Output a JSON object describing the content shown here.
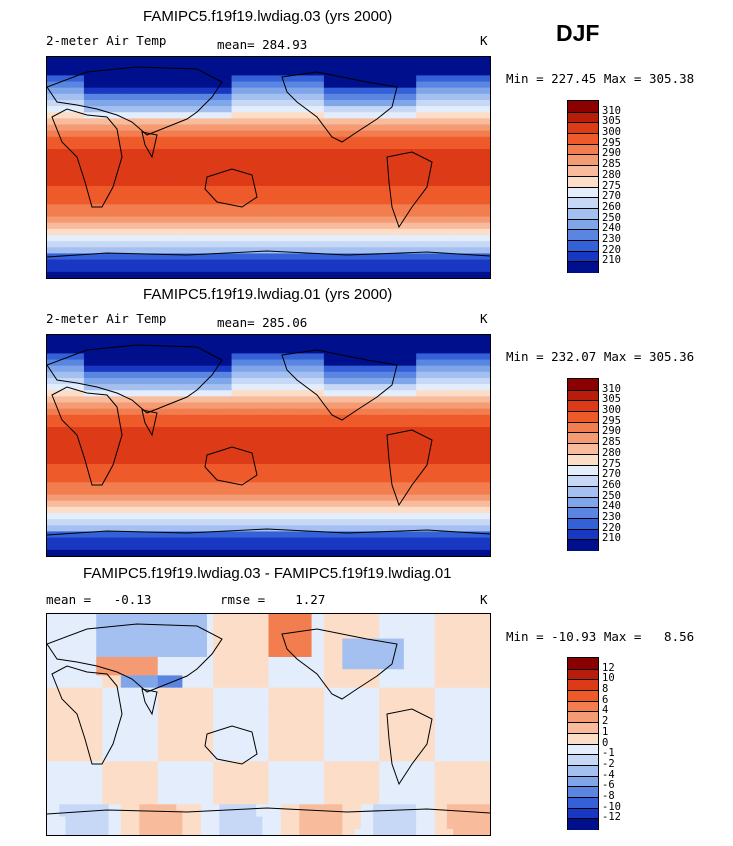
{
  "season": "DJF",
  "units": "K",
  "variable": "2-meter Air Temp",
  "panels": [
    {
      "title": "FAMIPC5.f19f19.lwdiag.03 (yrs 2000)",
      "left_label": "2-meter Air Temp",
      "stat_text": "mean= 284.93",
      "units": "K",
      "minmax": "Min = 227.45 Max = 305.38"
    },
    {
      "title": "FAMIPC5.f19f19.lwdiag.01 (yrs 2000)",
      "left_label": "2-meter Air Temp",
      "stat_text": "mean= 285.06",
      "units": "K",
      "minmax": "Min = 232.07 Max = 305.36"
    },
    {
      "title": "FAMIPC5.f19f19.lwdiag.03 - FAMIPC5.f19f19.lwdiag.01",
      "left_label": "mean =   -0.13",
      "stat_text": "rmse =    1.27",
      "units": "K",
      "minmax": "Min = -10.93 Max =   8.56"
    }
  ],
  "chart_data": [
    {
      "type": "heatmap",
      "title": "FAMIPC5.f19f19.lwdiag.03 (yrs 2000)",
      "variable": "2-meter Air Temp",
      "units": "K",
      "mean": 284.93,
      "min": 227.45,
      "max": 305.38,
      "projection": "global cylindrical equidistant, Pacific-centered",
      "colorbar_levels": [
        310,
        305,
        300,
        295,
        290,
        285,
        280,
        275,
        270,
        260,
        250,
        240,
        230,
        220,
        210
      ],
      "colorbar_colors": [
        "#8b0000",
        "#b81d0c",
        "#dd3a18",
        "#ef5a2a",
        "#f27d4e",
        "#f59b74",
        "#f8bc9c",
        "#fbddc8",
        "#e4edfb",
        "#c6d8f6",
        "#a4c0f0",
        "#80a6ea",
        "#5a86e2",
        "#3460d8",
        "#1838c4",
        "#00108c"
      ],
      "pattern": "warm tropics (~300 K), cold polar regions and high-latitude Northern Hemisphere continents"
    },
    {
      "type": "heatmap",
      "title": "FAMIPC5.f19f19.lwdiag.01 (yrs 2000)",
      "variable": "2-meter Air Temp",
      "units": "K",
      "mean": 285.06,
      "min": 232.07,
      "max": 305.36,
      "projection": "global cylindrical equidistant, Pacific-centered",
      "colorbar_levels": [
        310,
        305,
        300,
        295,
        290,
        285,
        280,
        275,
        270,
        260,
        250,
        240,
        230,
        220,
        210
      ],
      "colorbar_colors": [
        "#8b0000",
        "#b81d0c",
        "#dd3a18",
        "#ef5a2a",
        "#f27d4e",
        "#f59b74",
        "#f8bc9c",
        "#fbddc8",
        "#e4edfb",
        "#c6d8f6",
        "#a4c0f0",
        "#80a6ea",
        "#5a86e2",
        "#3460d8",
        "#1838c4",
        "#00108c"
      ],
      "pattern": "warm tropics (~300 K), cold polar regions and high-latitude Northern Hemisphere continents"
    },
    {
      "type": "heatmap",
      "title": "FAMIPC5.f19f19.lwdiag.03 - FAMIPC5.f19f19.lwdiag.01",
      "units": "K",
      "mean": -0.13,
      "rmse": 1.27,
      "min": -10.93,
      "max": 8.56,
      "projection": "global cylindrical equidistant, Pacific-centered",
      "colorbar_levels": [
        12,
        10,
        8,
        6,
        4,
        2,
        1,
        0,
        -1,
        -2,
        -4,
        -6,
        -8,
        -10,
        -12
      ],
      "colorbar_colors": [
        "#8b0000",
        "#b81d0c",
        "#dd3a18",
        "#ef5a2a",
        "#f27d4e",
        "#f59b74",
        "#f8bc9c",
        "#fbddc8",
        "#e4edfb",
        "#c6d8f6",
        "#a4c0f0",
        "#80a6ea",
        "#5a86e2",
        "#3460d8",
        "#1838c4",
        "#00108c"
      ],
      "pattern": "mostly near-zero differences, negative over high-latitude Eurasia and North America, positive over central Asia and Alaska"
    }
  ]
}
